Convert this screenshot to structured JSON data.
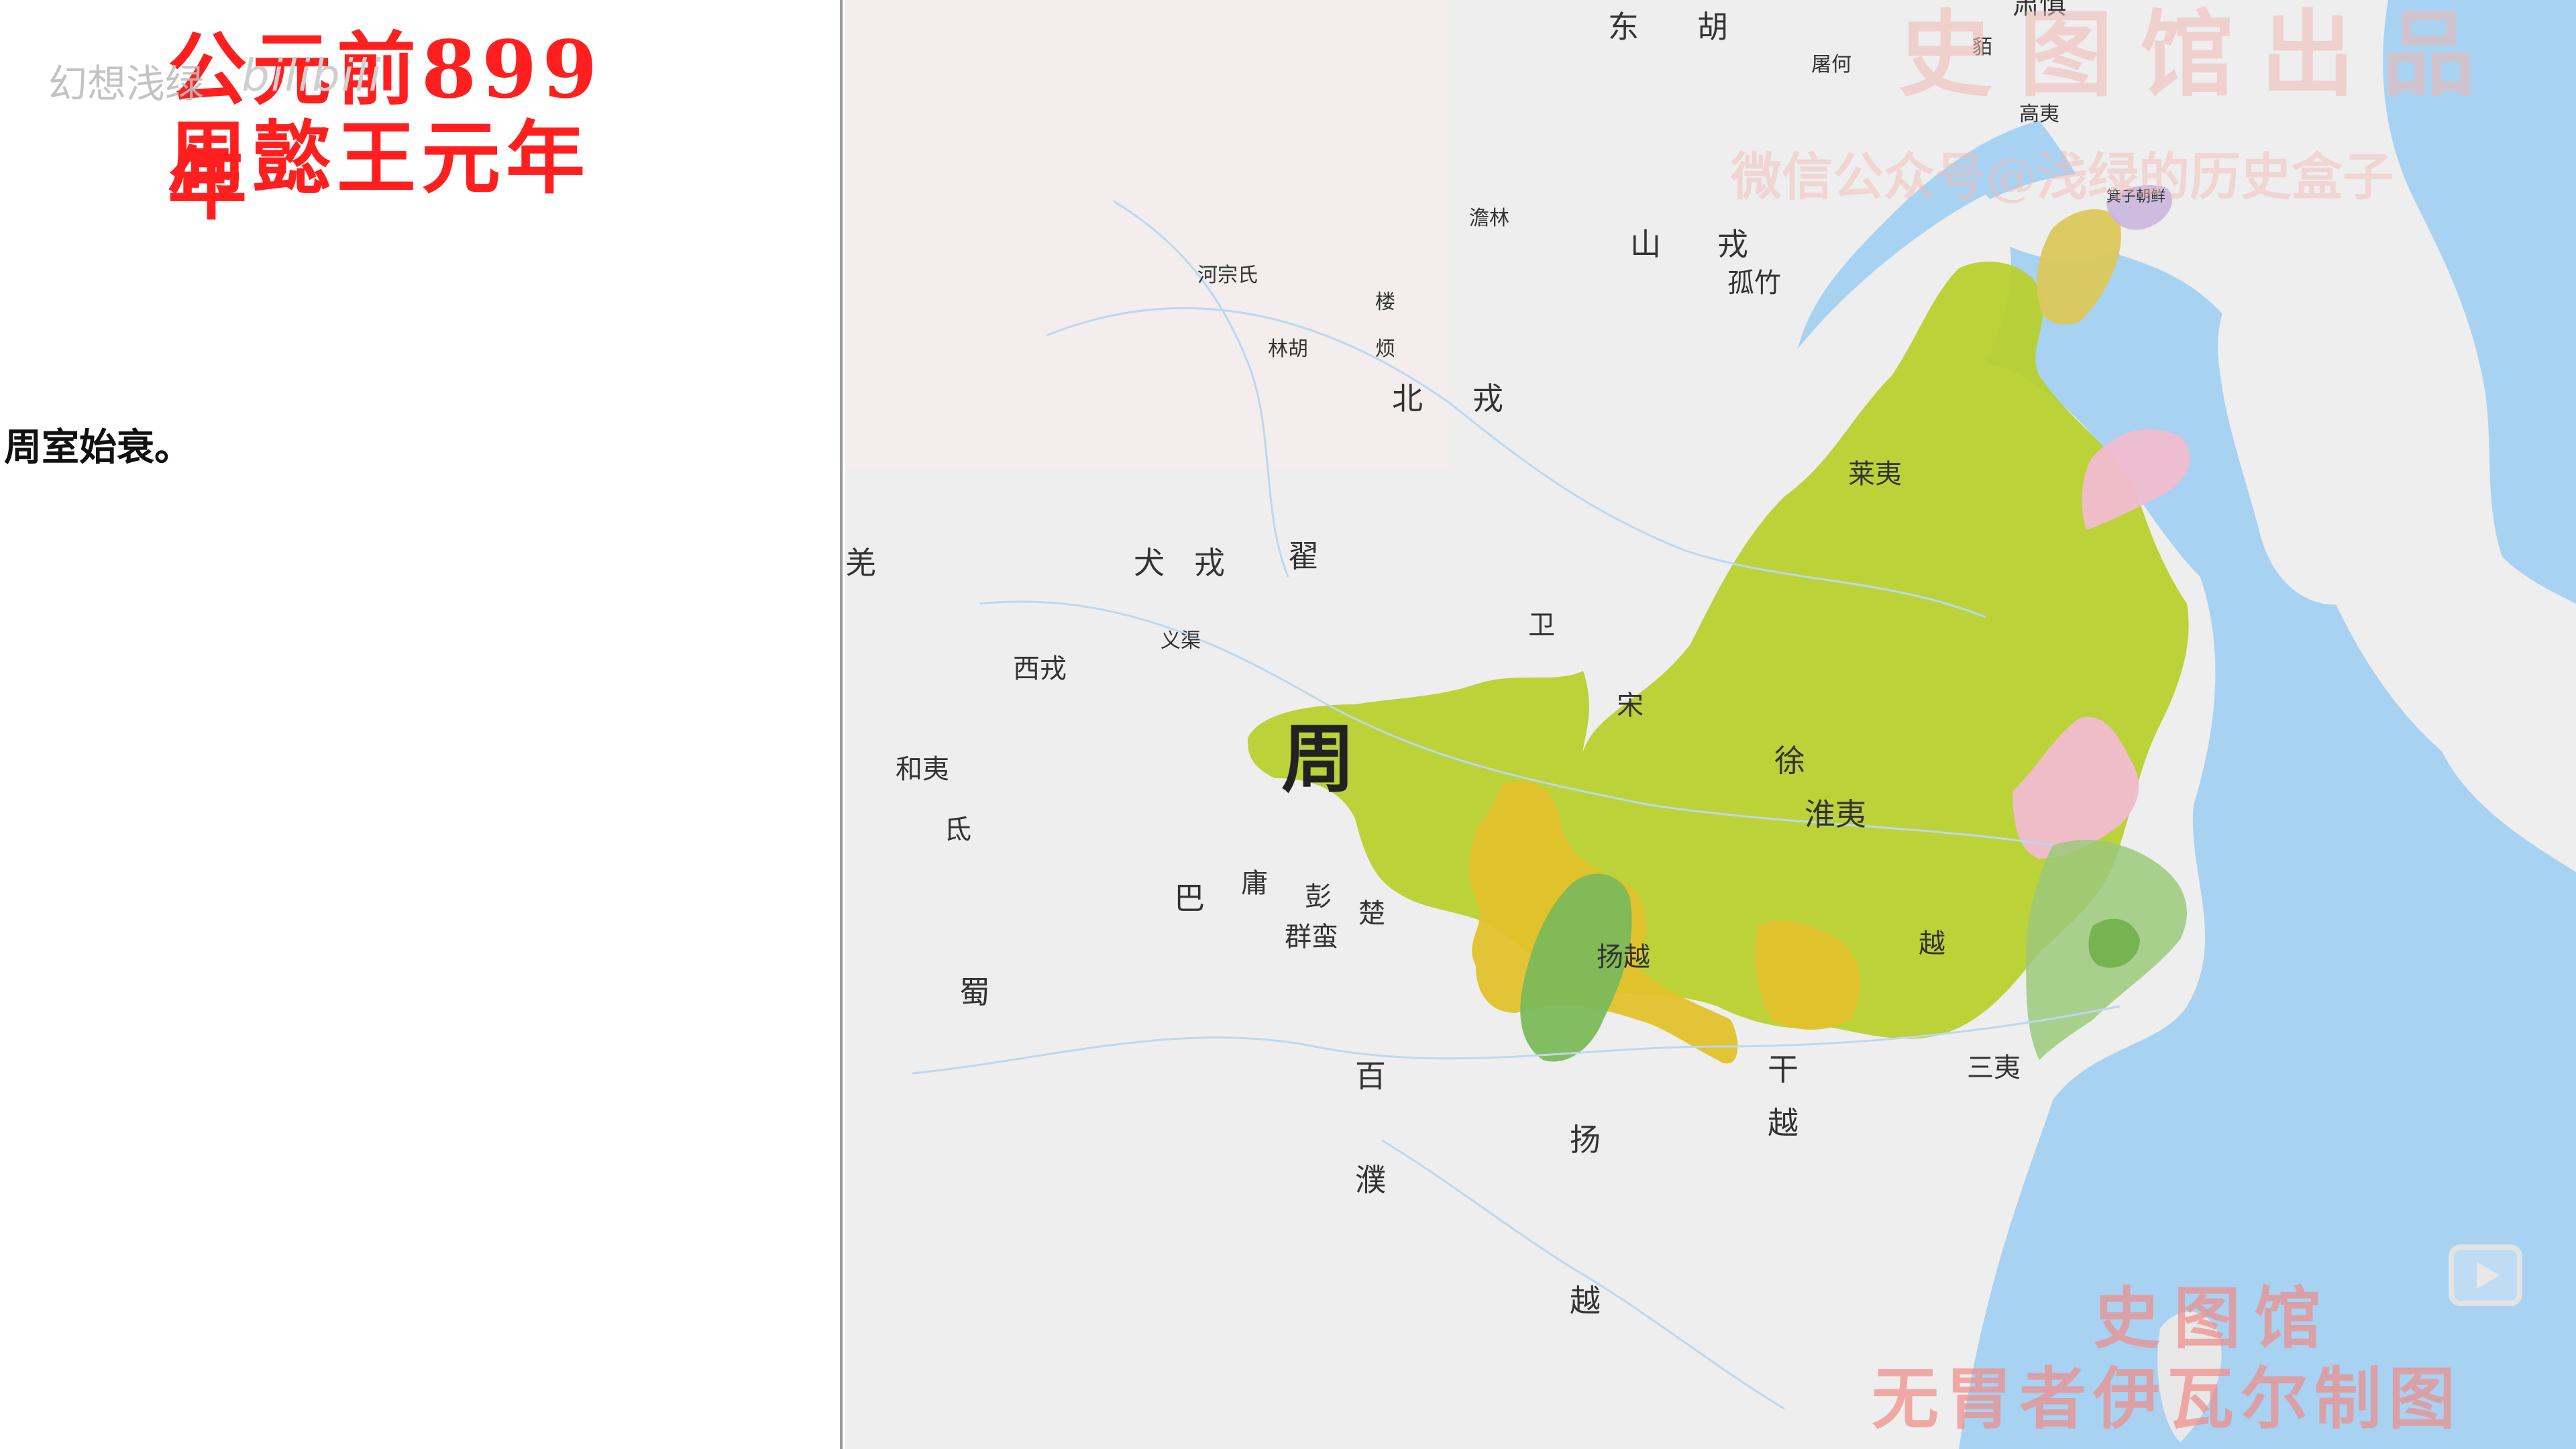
{
  "header": {
    "year_line": "公元前899年",
    "reign_line": "周懿王元年"
  },
  "overlay": {
    "channel_watermark": "幻想浅绿",
    "platform_mark": "bilibili"
  },
  "caption": "周室始衰。",
  "map": {
    "main_state": "周",
    "colors": {
      "zhou": "#b7d02e",
      "chu": "#e3c22a",
      "yi": "#f0bcd0",
      "shu": "#7cb95a",
      "yue": "#9cc97a",
      "gu": "#dcc75a",
      "sea": "#a7d2f3",
      "land": "#efefef"
    },
    "polity_labels": [
      {
        "id": "dong",
        "text": "东"
      },
      {
        "id": "hu",
        "text": "胡"
      },
      {
        "id": "tuhe",
        "text": "屠何"
      },
      {
        "id": "sushen",
        "text": "肃慎"
      },
      {
        "id": "hui",
        "text": "貊"
      },
      {
        "id": "gaoyi",
        "text": "高夷"
      },
      {
        "id": "jizi",
        "text": "箕子朝鲜"
      },
      {
        "id": "shan",
        "text": "山"
      },
      {
        "id": "rong1",
        "text": "戎"
      },
      {
        "id": "guzhu",
        "text": "孤竹"
      },
      {
        "id": "tanlin",
        "text": "澹林"
      },
      {
        "id": "hezong",
        "text": "河宗氏"
      },
      {
        "id": "lou",
        "text": "楼"
      },
      {
        "id": "fan",
        "text": "烦"
      },
      {
        "id": "linhu",
        "text": "林胡"
      },
      {
        "id": "bei",
        "text": "北"
      },
      {
        "id": "rong2",
        "text": "戎"
      },
      {
        "id": "laiyi",
        "text": "莱夷"
      },
      {
        "id": "qiang",
        "text": "羌"
      },
      {
        "id": "quan",
        "text": "犬"
      },
      {
        "id": "rong3",
        "text": "戎"
      },
      {
        "id": "di",
        "text": "翟"
      },
      {
        "id": "yiqu",
        "text": "义渠"
      },
      {
        "id": "xirong",
        "text": "西戎"
      },
      {
        "id": "heyi",
        "text": "和夷"
      },
      {
        "id": "di2",
        "text": "氐"
      },
      {
        "id": "xu",
        "text": "徐"
      },
      {
        "id": "huaiyi",
        "text": "淮夷"
      },
      {
        "id": "ba",
        "text": "巴"
      },
      {
        "id": "yong",
        "text": "庸"
      },
      {
        "id": "peng",
        "text": "彭"
      },
      {
        "id": "chu",
        "text": "楚"
      },
      {
        "id": "qunman",
        "text": "群蛮"
      },
      {
        "id": "shu",
        "text": "蜀"
      },
      {
        "id": "yangyue",
        "text": "扬越"
      },
      {
        "id": "yue",
        "text": "越"
      },
      {
        "id": "bai",
        "text": "百"
      },
      {
        "id": "pu",
        "text": "濮"
      },
      {
        "id": "yang",
        "text": "扬"
      },
      {
        "id": "yue2",
        "text": "越"
      },
      {
        "id": "gan",
        "text": "干"
      },
      {
        "id": "yue3",
        "text": "越"
      },
      {
        "id": "sanyi",
        "text": "三夷"
      },
      {
        "id": "weidian",
        "text": "卫"
      },
      {
        "id": "song",
        "text": "宋"
      }
    ],
    "watermark_top_1": "史图馆出品",
    "watermark_top_2": "微信公众号@浅绿的历史盒子",
    "watermark_bottom_1": "史图馆",
    "watermark_bottom_2": "无胃者伊瓦尔制图"
  },
  "player": {
    "play_icon": "play-icon"
  }
}
